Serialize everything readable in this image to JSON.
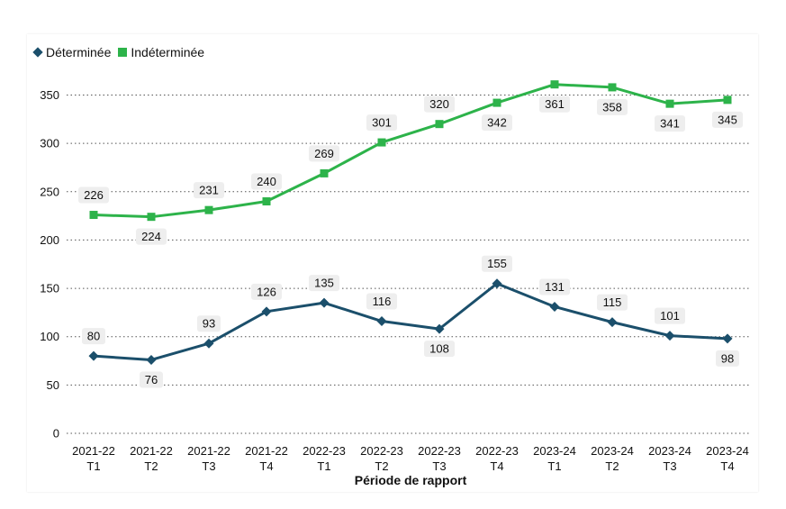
{
  "chart_data": {
    "type": "line",
    "xlabel": "Période de rapport",
    "ylabel": "",
    "ylim": [
      0,
      350
    ],
    "yticks": [
      0,
      50,
      100,
      150,
      200,
      250,
      300,
      350
    ],
    "grid": "horizontal-dotted",
    "legend_placement": "top-left",
    "categories": [
      [
        "2021-22",
        "T1"
      ],
      [
        "2021-22",
        "T2"
      ],
      [
        "2021-22",
        "T3"
      ],
      [
        "2021-22",
        "T4"
      ],
      [
        "2022-23",
        "T1"
      ],
      [
        "2022-23",
        "T2"
      ],
      [
        "2022-23",
        "T3"
      ],
      [
        "2022-23",
        "T4"
      ],
      [
        "2023-24",
        "T1"
      ],
      [
        "2023-24",
        "T2"
      ],
      [
        "2023-24",
        "T3"
      ],
      [
        "2023-24",
        "T4"
      ]
    ],
    "series": [
      {
        "name": "Déterminée",
        "color": "#1b4f6b",
        "marker": "diamond",
        "values": [
          80,
          76,
          93,
          126,
          135,
          116,
          108,
          155,
          131,
          115,
          101,
          98
        ],
        "label_pos": [
          "above",
          "below",
          "above",
          "above",
          "above",
          "above",
          "below",
          "above",
          "above",
          "above",
          "above",
          "below"
        ]
      },
      {
        "name": "Indéterminée",
        "color": "#2db34a",
        "marker": "square",
        "values": [
          226,
          224,
          231,
          240,
          269,
          301,
          320,
          342,
          361,
          358,
          341,
          345
        ],
        "label_pos": [
          "above",
          "below",
          "above",
          "above",
          "above",
          "above",
          "above",
          "below",
          "below",
          "below",
          "below",
          "below"
        ]
      }
    ]
  }
}
